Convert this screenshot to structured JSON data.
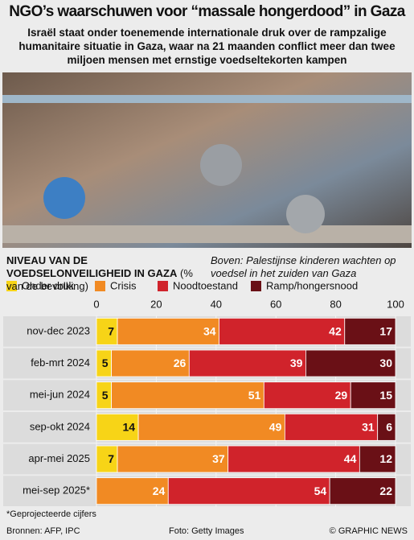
{
  "header": {
    "title": "NGO’s waarschuwen voor “massale hongerdood” in Gaza",
    "subtitle": "Israël staat onder toenemende internationale druk over de rampzalige humanitaire situatie in Gaza, waar na 21 maanden conflict meer dan twee miljoen mensen met ernstige voedseltekorten kampen"
  },
  "photo_caption": "Boven: Palestijnse kinderen wachten op voedsel in het zuiden van Gaza",
  "chart_data": {
    "type": "stacked-bar",
    "orientation": "horizontal",
    "title": "NIVEAU VAN DE VOEDSELONVEILIGHEID IN GAZA",
    "subtitle": "(% van de bevolking)",
    "categories": [
      "nov-dec 2023",
      "feb-mrt 2024",
      "mei-jun 2024",
      "sep-okt 2024",
      "apr-mei 2025",
      "mei-sep 2025*"
    ],
    "series": [
      {
        "name": "Onder druk",
        "color": "#f7d417",
        "values": [
          7,
          5,
          5,
          14,
          7,
          null
        ]
      },
      {
        "name": "Crisis",
        "color": "#f18a23",
        "values": [
          34,
          26,
          51,
          49,
          37,
          24
        ]
      },
      {
        "name": "Noodtoestand",
        "color": "#d0232b",
        "values": [
          42,
          39,
          29,
          31,
          44,
          54
        ]
      },
      {
        "name": "Ramp/hongersnood",
        "color": "#6a1016",
        "values": [
          17,
          30,
          15,
          6,
          12,
          22
        ]
      }
    ],
    "xlim": [
      0,
      100
    ],
    "xticks": [
      0,
      20,
      40,
      60,
      80,
      100
    ]
  },
  "footnote": "*Geprojecteerde cijfers",
  "footer": {
    "sources": "Bronnen: AFP, IPC",
    "photo_credit": "Foto: Getty Images",
    "copyright": "© GRAPHIC NEWS"
  }
}
